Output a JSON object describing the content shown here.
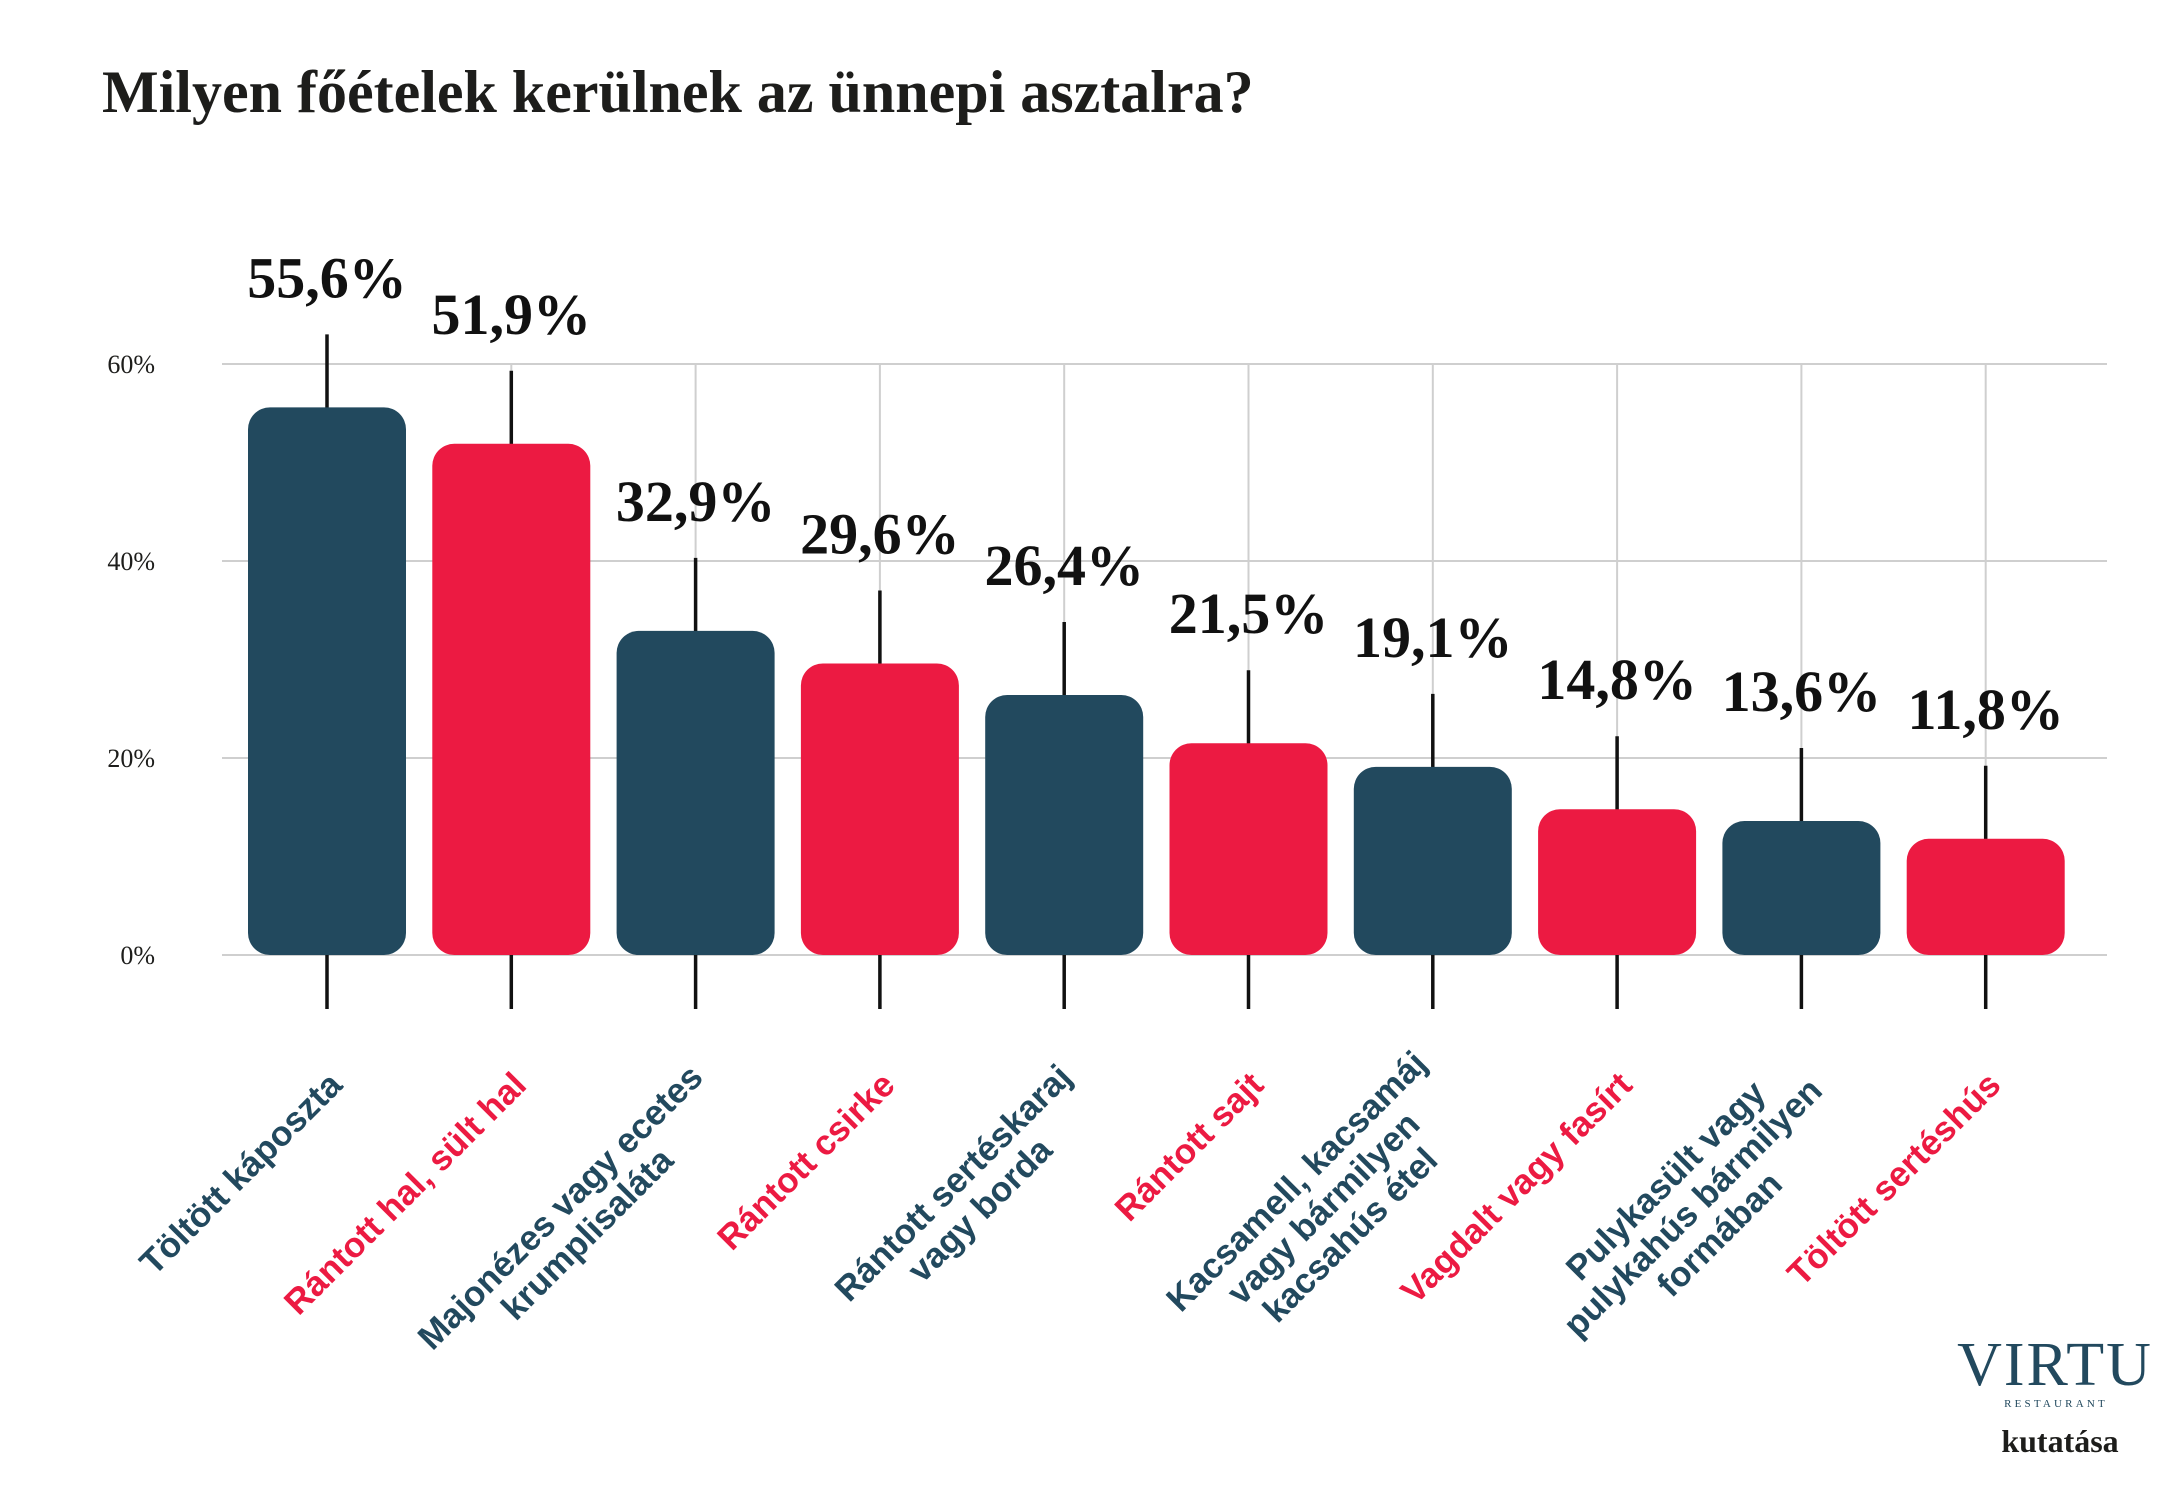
{
  "title": "Milyen főételek kerülnek az ünnepi asztalra?",
  "colors": {
    "navy": "#22495e",
    "red": "#ec1a42",
    "text": "#1d1d1b",
    "grid": "#cfcfcf"
  },
  "chart_data": {
    "type": "bar",
    "title": "Milyen főételek kerülnek az ünnepi asztalra?",
    "xlabel": "",
    "ylabel": "",
    "ylim": [
      0,
      60
    ],
    "grid": true,
    "yticks": [
      0,
      20,
      40,
      60
    ],
    "ytick_labels": [
      "0%",
      "20%",
      "40%",
      "60%"
    ],
    "categories": [
      [
        "Töltött káposzta"
      ],
      [
        "Rántott hal, sült hal"
      ],
      [
        "Majonézes vagy ecetes",
        "krumplisaláta"
      ],
      [
        "Rántott csirke"
      ],
      [
        "Rántott sertéskaraj",
        "vagy borda"
      ],
      [
        "Rántott sajt"
      ],
      [
        "Kacsamell, kacsamáj",
        "vagy bármilyen",
        "kacsahús étel"
      ],
      [
        "Vagdalt vagy fasírt"
      ],
      [
        "Pulykasült vagy",
        "pulykahús bármilyen",
        "formában"
      ],
      [
        "Töltött sertéshús"
      ]
    ],
    "values": [
      55.6,
      51.9,
      32.9,
      29.6,
      26.4,
      21.5,
      19.1,
      14.8,
      13.6,
      11.8
    ],
    "value_labels": [
      "55,6%",
      "51,9%",
      "32,9%",
      "29,6%",
      "26,4%",
      "21,5%",
      "19,1%",
      "14,8%",
      "13,6%",
      "11,8%"
    ],
    "bar_colors": [
      "#22495e",
      "#ec1a42",
      "#22495e",
      "#ec1a42",
      "#22495e",
      "#ec1a42",
      "#22495e",
      "#ec1a42",
      "#22495e",
      "#ec1a42"
    ]
  },
  "logo": {
    "brand": "VIRTU",
    "sub": "RESTAURANT",
    "caption": "kutatása"
  }
}
